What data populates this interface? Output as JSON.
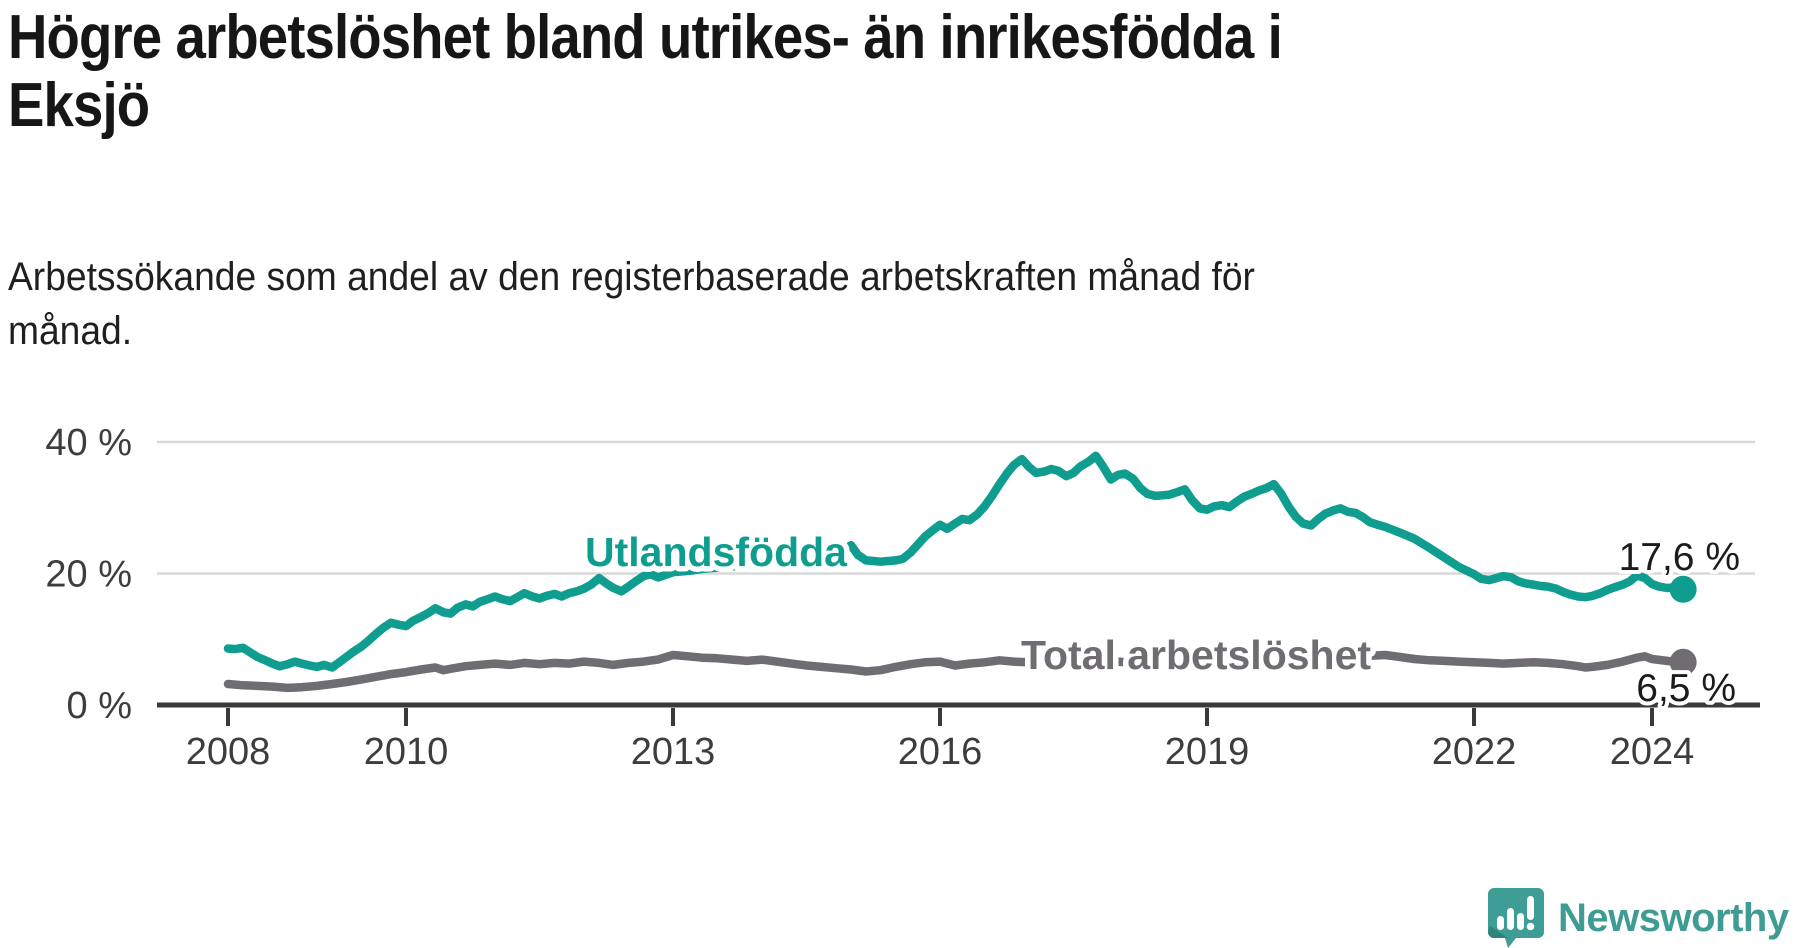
{
  "header": {
    "title_lines": [
      "Högre arbetslöshet bland utrikes- än inrikesfödda i",
      "Eksjö"
    ],
    "subtitle_lines": [
      "Arbetssökande som andel av den registerbaserade arbetskraften månad för",
      "månad."
    ]
  },
  "footer": {
    "brand": "Newsworthy",
    "brand_color": "#3F9C94",
    "icon_color": "#3E9D95",
    "icon_shadow": "#2E837B"
  },
  "chart_data": {
    "type": "line",
    "title": "Högre arbetslöshet bland utrikes- än inrikesfödda i Eksjö",
    "subtitle": "Arbetssökande som andel av den registerbaserade arbetskraften månad för månad.",
    "xlabel": "",
    "ylabel": "",
    "grid": "horizontal",
    "legend_position": "inline-labels",
    "x_range": [
      2007.6,
      2025.1
    ],
    "ylim": [
      0,
      42
    ],
    "colors": {
      "gridline": "#d9d9d9",
      "axis": "#3a3a3a",
      "tick_text": "#3d3d3d",
      "value_text": "#1b1b1b"
    },
    "x_axis": {
      "ticks": [
        {
          "label": "2008",
          "year": 2008
        },
        {
          "label": "2010",
          "year": 2010
        },
        {
          "label": "2013",
          "year": 2013
        },
        {
          "label": "2016",
          "year": 2016
        },
        {
          "label": "2019",
          "year": 2019
        },
        {
          "label": "2022",
          "year": 2022
        },
        {
          "label": "2024",
          "year": 2024
        }
      ]
    },
    "y_axis": {
      "ticks": [
        {
          "label": "40 %",
          "value": 40
        },
        {
          "label": "20 %",
          "value": 20
        },
        {
          "label": "0 %",
          "value": 0
        }
      ]
    },
    "series": [
      {
        "name": "Utlandsfödda",
        "color": "#0E9D8F",
        "end_label": "17,6 %",
        "end_value": 17.6,
        "points": [
          [
            2008.0,
            8.6
          ],
          [
            2008.08,
            8.5
          ],
          [
            2008.17,
            8.7
          ],
          [
            2008.25,
            8.0
          ],
          [
            2008.33,
            7.3
          ],
          [
            2008.42,
            6.8
          ],
          [
            2008.5,
            6.3
          ],
          [
            2008.58,
            5.9
          ],
          [
            2008.67,
            6.2
          ],
          [
            2008.75,
            6.6
          ],
          [
            2008.83,
            6.3
          ],
          [
            2008.92,
            6.0
          ],
          [
            2009.0,
            5.8
          ],
          [
            2009.08,
            6.1
          ],
          [
            2009.17,
            5.7
          ],
          [
            2009.25,
            6.5
          ],
          [
            2009.33,
            7.3
          ],
          [
            2009.42,
            8.2
          ],
          [
            2009.5,
            8.9
          ],
          [
            2009.58,
            9.8
          ],
          [
            2009.67,
            10.9
          ],
          [
            2009.75,
            11.8
          ],
          [
            2009.83,
            12.5
          ],
          [
            2009.92,
            12.2
          ],
          [
            2010.0,
            12.0
          ],
          [
            2010.08,
            12.8
          ],
          [
            2010.17,
            13.4
          ],
          [
            2010.25,
            14.0
          ],
          [
            2010.33,
            14.7
          ],
          [
            2010.42,
            14.1
          ],
          [
            2010.5,
            13.9
          ],
          [
            2010.58,
            14.8
          ],
          [
            2010.67,
            15.3
          ],
          [
            2010.75,
            15.0
          ],
          [
            2010.83,
            15.7
          ],
          [
            2010.92,
            16.1
          ],
          [
            2011.0,
            16.5
          ],
          [
            2011.08,
            16.1
          ],
          [
            2011.17,
            15.8
          ],
          [
            2011.25,
            16.4
          ],
          [
            2011.33,
            17.0
          ],
          [
            2011.42,
            16.5
          ],
          [
            2011.5,
            16.2
          ],
          [
            2011.58,
            16.6
          ],
          [
            2011.67,
            16.9
          ],
          [
            2011.75,
            16.5
          ],
          [
            2011.83,
            17.0
          ],
          [
            2011.92,
            17.3
          ],
          [
            2012.0,
            17.7
          ],
          [
            2012.08,
            18.3
          ],
          [
            2012.17,
            19.3
          ],
          [
            2012.25,
            18.5
          ],
          [
            2012.33,
            17.8
          ],
          [
            2012.42,
            17.3
          ],
          [
            2012.5,
            18.0
          ],
          [
            2012.58,
            18.8
          ],
          [
            2012.67,
            19.6
          ],
          [
            2012.75,
            19.9
          ],
          [
            2012.83,
            19.4
          ],
          [
            2012.92,
            19.8
          ],
          [
            2013.0,
            20.2
          ],
          [
            2013.17,
            20.4
          ],
          [
            2013.33,
            20.7
          ],
          [
            2013.5,
            20.9
          ],
          [
            2013.67,
            21.1
          ],
          [
            2013.83,
            21.4
          ],
          [
            2014.0,
            21.6
          ],
          [
            2014.17,
            21.8
          ],
          [
            2014.33,
            22.0
          ],
          [
            2014.5,
            22.1
          ],
          [
            2014.67,
            22.3
          ],
          [
            2014.83,
            22.6
          ],
          [
            2015.0,
            24.3
          ],
          [
            2015.08,
            22.8
          ],
          [
            2015.17,
            22.0
          ],
          [
            2015.25,
            21.9
          ],
          [
            2015.33,
            21.8
          ],
          [
            2015.42,
            21.9
          ],
          [
            2015.5,
            22.0
          ],
          [
            2015.58,
            22.2
          ],
          [
            2015.67,
            23.2
          ],
          [
            2015.75,
            24.4
          ],
          [
            2015.83,
            25.6
          ],
          [
            2015.92,
            26.6
          ],
          [
            2016.0,
            27.4
          ],
          [
            2016.08,
            26.8
          ],
          [
            2016.17,
            27.6
          ],
          [
            2016.25,
            28.3
          ],
          [
            2016.33,
            28.1
          ],
          [
            2016.42,
            29.0
          ],
          [
            2016.5,
            30.2
          ],
          [
            2016.58,
            31.7
          ],
          [
            2016.67,
            33.6
          ],
          [
            2016.75,
            35.2
          ],
          [
            2016.83,
            36.5
          ],
          [
            2016.92,
            37.4
          ],
          [
            2017.0,
            36.2
          ],
          [
            2017.08,
            35.3
          ],
          [
            2017.17,
            35.5
          ],
          [
            2017.25,
            35.9
          ],
          [
            2017.33,
            35.6
          ],
          [
            2017.42,
            34.8
          ],
          [
            2017.5,
            35.3
          ],
          [
            2017.58,
            36.3
          ],
          [
            2017.67,
            37.0
          ],
          [
            2017.75,
            37.9
          ],
          [
            2017.83,
            36.3
          ],
          [
            2017.92,
            34.3
          ],
          [
            2018.0,
            35.0
          ],
          [
            2018.08,
            35.2
          ],
          [
            2018.17,
            34.4
          ],
          [
            2018.25,
            33.0
          ],
          [
            2018.33,
            32.1
          ],
          [
            2018.42,
            31.8
          ],
          [
            2018.5,
            31.9
          ],
          [
            2018.58,
            32.0
          ],
          [
            2018.67,
            32.4
          ],
          [
            2018.75,
            32.8
          ],
          [
            2018.83,
            31.2
          ],
          [
            2018.92,
            29.9
          ],
          [
            2019.0,
            29.7
          ],
          [
            2019.08,
            30.2
          ],
          [
            2019.17,
            30.4
          ],
          [
            2019.25,
            30.1
          ],
          [
            2019.33,
            30.9
          ],
          [
            2019.42,
            31.7
          ],
          [
            2019.5,
            32.1
          ],
          [
            2019.58,
            32.6
          ],
          [
            2019.67,
            33.0
          ],
          [
            2019.75,
            33.6
          ],
          [
            2019.83,
            32.2
          ],
          [
            2019.92,
            30.1
          ],
          [
            2020.0,
            28.6
          ],
          [
            2020.08,
            27.6
          ],
          [
            2020.17,
            27.3
          ],
          [
            2020.25,
            28.3
          ],
          [
            2020.33,
            29.1
          ],
          [
            2020.42,
            29.6
          ],
          [
            2020.5,
            29.9
          ],
          [
            2020.58,
            29.4
          ],
          [
            2020.67,
            29.2
          ],
          [
            2020.75,
            28.6
          ],
          [
            2020.83,
            27.8
          ],
          [
            2020.92,
            27.4
          ],
          [
            2021.0,
            27.1
          ],
          [
            2021.17,
            26.2
          ],
          [
            2021.33,
            25.3
          ],
          [
            2021.5,
            23.9
          ],
          [
            2021.67,
            22.4
          ],
          [
            2021.83,
            21.0
          ],
          [
            2022.0,
            19.9
          ],
          [
            2022.08,
            19.2
          ],
          [
            2022.17,
            19.0
          ],
          [
            2022.25,
            19.3
          ],
          [
            2022.33,
            19.6
          ],
          [
            2022.42,
            19.4
          ],
          [
            2022.5,
            18.8
          ],
          [
            2022.58,
            18.5
          ],
          [
            2022.67,
            18.3
          ],
          [
            2022.75,
            18.1
          ],
          [
            2022.83,
            18.0
          ],
          [
            2022.92,
            17.7
          ],
          [
            2023.0,
            17.2
          ],
          [
            2023.08,
            16.8
          ],
          [
            2023.17,
            16.5
          ],
          [
            2023.25,
            16.4
          ],
          [
            2023.33,
            16.6
          ],
          [
            2023.42,
            17.0
          ],
          [
            2023.5,
            17.5
          ],
          [
            2023.58,
            17.9
          ],
          [
            2023.67,
            18.3
          ],
          [
            2023.75,
            18.8
          ],
          [
            2023.83,
            19.7
          ],
          [
            2023.92,
            19.3
          ],
          [
            2024.0,
            18.4
          ],
          [
            2024.08,
            18.0
          ],
          [
            2024.17,
            17.8
          ],
          [
            2024.25,
            17.9
          ],
          [
            2024.35,
            17.6
          ]
        ]
      },
      {
        "name": "Total arbetslöshet",
        "color": "#6F6C72",
        "end_label": "6,5 %",
        "end_value": 6.5,
        "points": [
          [
            2008.0,
            3.2
          ],
          [
            2008.17,
            3.0
          ],
          [
            2008.33,
            2.9
          ],
          [
            2008.5,
            2.8
          ],
          [
            2008.67,
            2.6
          ],
          [
            2008.83,
            2.7
          ],
          [
            2009.0,
            2.9
          ],
          [
            2009.17,
            3.2
          ],
          [
            2009.33,
            3.5
          ],
          [
            2009.5,
            3.9
          ],
          [
            2009.67,
            4.3
          ],
          [
            2009.83,
            4.7
          ],
          [
            2010.0,
            5.0
          ],
          [
            2010.17,
            5.4
          ],
          [
            2010.33,
            5.7
          ],
          [
            2010.42,
            5.3
          ],
          [
            2010.5,
            5.5
          ],
          [
            2010.67,
            5.9
          ],
          [
            2010.83,
            6.1
          ],
          [
            2011.0,
            6.3
          ],
          [
            2011.17,
            6.1
          ],
          [
            2011.33,
            6.4
          ],
          [
            2011.5,
            6.2
          ],
          [
            2011.67,
            6.4
          ],
          [
            2011.83,
            6.3
          ],
          [
            2012.0,
            6.6
          ],
          [
            2012.17,
            6.4
          ],
          [
            2012.33,
            6.1
          ],
          [
            2012.5,
            6.4
          ],
          [
            2012.67,
            6.6
          ],
          [
            2012.83,
            6.9
          ],
          [
            2013.0,
            7.6
          ],
          [
            2013.17,
            7.4
          ],
          [
            2013.33,
            7.2
          ],
          [
            2013.5,
            7.1
          ],
          [
            2013.67,
            6.9
          ],
          [
            2013.83,
            6.7
          ],
          [
            2014.0,
            6.9
          ],
          [
            2014.17,
            6.6
          ],
          [
            2014.33,
            6.3
          ],
          [
            2014.5,
            6.0
          ],
          [
            2014.67,
            5.8
          ],
          [
            2014.83,
            5.6
          ],
          [
            2015.0,
            5.4
          ],
          [
            2015.17,
            5.1
          ],
          [
            2015.33,
            5.3
          ],
          [
            2015.5,
            5.8
          ],
          [
            2015.67,
            6.2
          ],
          [
            2015.83,
            6.5
          ],
          [
            2016.0,
            6.6
          ],
          [
            2016.17,
            6.0
          ],
          [
            2016.33,
            6.3
          ],
          [
            2016.5,
            6.5
          ],
          [
            2016.67,
            6.8
          ],
          [
            2016.83,
            6.6
          ],
          [
            2017.0,
            6.5
          ],
          [
            2017.17,
            6.7
          ],
          [
            2017.33,
            6.5
          ],
          [
            2017.5,
            6.3
          ],
          [
            2017.67,
            6.5
          ],
          [
            2017.83,
            6.7
          ],
          [
            2018.0,
            6.6
          ],
          [
            2018.17,
            6.4
          ],
          [
            2018.33,
            6.2
          ],
          [
            2018.5,
            6.4
          ],
          [
            2018.67,
            6.6
          ],
          [
            2018.83,
            6.3
          ],
          [
            2019.0,
            6.1
          ],
          [
            2019.17,
            6.3
          ],
          [
            2019.33,
            6.5
          ],
          [
            2019.5,
            6.7
          ],
          [
            2019.67,
            6.9
          ],
          [
            2019.83,
            6.7
          ],
          [
            2020.0,
            6.6
          ],
          [
            2020.17,
            7.0
          ],
          [
            2020.33,
            7.6
          ],
          [
            2020.5,
            7.8
          ],
          [
            2020.67,
            7.7
          ],
          [
            2020.83,
            7.5
          ],
          [
            2021.0,
            7.6
          ],
          [
            2021.17,
            7.3
          ],
          [
            2021.33,
            7.0
          ],
          [
            2021.5,
            6.8
          ],
          [
            2021.67,
            6.7
          ],
          [
            2021.83,
            6.6
          ],
          [
            2022.0,
            6.5
          ],
          [
            2022.17,
            6.4
          ],
          [
            2022.33,
            6.3
          ],
          [
            2022.5,
            6.4
          ],
          [
            2022.67,
            6.5
          ],
          [
            2022.83,
            6.4
          ],
          [
            2023.0,
            6.2
          ],
          [
            2023.17,
            5.9
          ],
          [
            2023.25,
            5.7
          ],
          [
            2023.33,
            5.8
          ],
          [
            2023.5,
            6.1
          ],
          [
            2023.67,
            6.6
          ],
          [
            2023.83,
            7.2
          ],
          [
            2023.92,
            7.4
          ],
          [
            2024.0,
            7.0
          ],
          [
            2024.17,
            6.7
          ],
          [
            2024.25,
            6.6
          ],
          [
            2024.35,
            6.5
          ]
        ]
      }
    ]
  }
}
